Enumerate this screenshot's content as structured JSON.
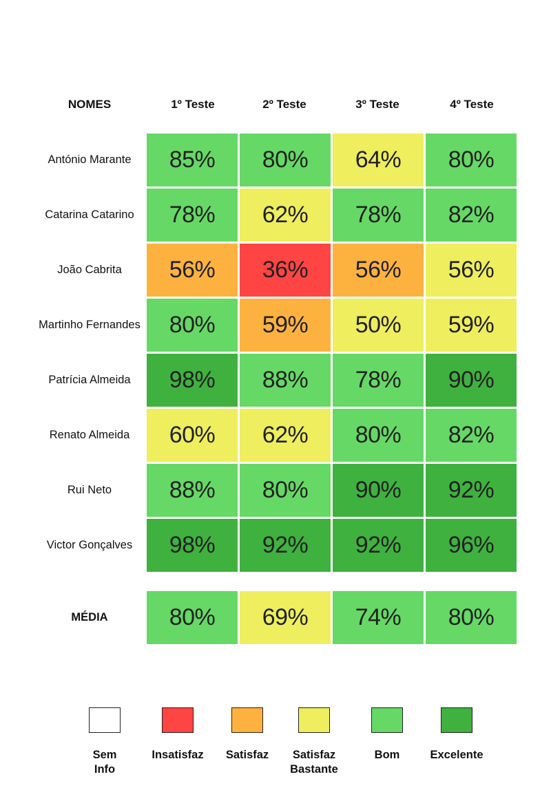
{
  "headers": [
    "NOMES",
    "1º Teste",
    "2º Teste",
    "3º Teste",
    "4º Teste"
  ],
  "colors": {
    "sem_info": "#ffffff",
    "insatisfaz": "#ff4444",
    "satisfaz": "#fdb240",
    "satisfaz_bastante": "#eeee5e",
    "bom": "#66d866",
    "excelente": "#3fb13f"
  },
  "chart_data": {
    "type": "table",
    "columns": [
      "1º Teste",
      "2º Teste",
      "3º Teste",
      "4º Teste"
    ],
    "rows": [
      {
        "name": "António Marante",
        "values": [
          "85%",
          "80%",
          "64%",
          "80%"
        ],
        "levels": [
          "bom",
          "bom",
          "satisfaz_bastante",
          "bom"
        ]
      },
      {
        "name": "Catarina Catarino",
        "values": [
          "78%",
          "62%",
          "78%",
          "82%"
        ],
        "levels": [
          "bom",
          "satisfaz_bastante",
          "bom",
          "bom"
        ]
      },
      {
        "name": "João Cabrita",
        "values": [
          "56%",
          "36%",
          "56%",
          "56%"
        ],
        "levels": [
          "satisfaz",
          "insatisfaz",
          "satisfaz",
          "satisfaz_bastante"
        ]
      },
      {
        "name": "Martinho Fernandes",
        "values": [
          "80%",
          "59%",
          "50%",
          "59%"
        ],
        "levels": [
          "bom",
          "satisfaz",
          "satisfaz_bastante",
          "satisfaz_bastante"
        ]
      },
      {
        "name": "Patrícia Almeida",
        "values": [
          "98%",
          "88%",
          "78%",
          "90%"
        ],
        "levels": [
          "excelente",
          "bom",
          "bom",
          "excelente"
        ]
      },
      {
        "name": "Renato Almeida",
        "values": [
          "60%",
          "62%",
          "80%",
          "82%"
        ],
        "levels": [
          "satisfaz_bastante",
          "satisfaz_bastante",
          "bom",
          "bom"
        ]
      },
      {
        "name": "Rui Neto",
        "values": [
          "88%",
          "80%",
          "90%",
          "92%"
        ],
        "levels": [
          "bom",
          "bom",
          "excelente",
          "excelente"
        ]
      },
      {
        "name": "Victor Gonçalves",
        "values": [
          "98%",
          "92%",
          "92%",
          "96%"
        ],
        "levels": [
          "excelente",
          "excelente",
          "excelente",
          "excelente"
        ]
      }
    ],
    "average": {
      "name": "MÉDIA",
      "values": [
        "80%",
        "69%",
        "74%",
        "80%"
      ],
      "levels": [
        "bom",
        "satisfaz_bastante",
        "bom",
        "bom"
      ]
    }
  },
  "legend": [
    {
      "label": "Sem Info",
      "level": "sem_info"
    },
    {
      "label": "Insatisfaz",
      "level": "insatisfaz"
    },
    {
      "label": "Satisfaz",
      "level": "satisfaz"
    },
    {
      "label": "Satisfaz Bastante",
      "level": "satisfaz_bastante"
    },
    {
      "label": "Bom",
      "level": "bom"
    },
    {
      "label": "Excelente",
      "level": "excelente"
    }
  ]
}
